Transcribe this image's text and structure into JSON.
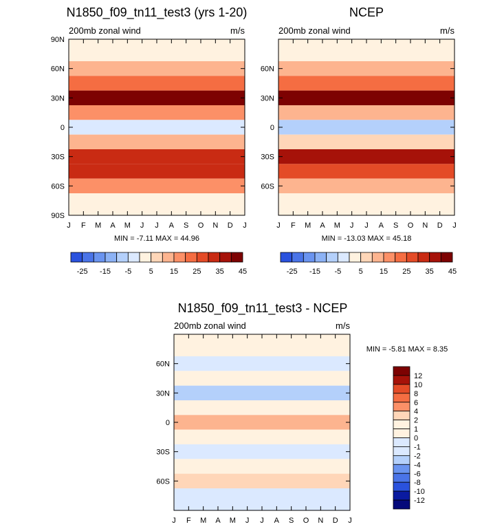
{
  "colors": {
    "warm": [
      "#fff2e0",
      "#ffd6b8",
      "#fdb48f",
      "#fc9067",
      "#f56d42",
      "#e44b27",
      "#c92b13",
      "#a61209",
      "#7d0202"
    ],
    "cool": [
      "#dbe9ff",
      "#b4d0fb",
      "#8cb2f5",
      "#6a94f0",
      "#4a74e8",
      "#2a52de",
      "#1230c8",
      "#0a1aa0",
      "#050a7a"
    ],
    "neutral": "#ffffff"
  },
  "chart_data": [
    {
      "type": "heatmap",
      "title": "N1850_f09_tn11_test3 (yrs 1-20)",
      "subtitle_left": "200mb zonal wind",
      "subtitle_right": "m/s",
      "x_ticks": [
        "J",
        "F",
        "M",
        "A",
        "M",
        "J",
        "J",
        "A",
        "S",
        "O",
        "N",
        "D",
        "J"
      ],
      "y_ticks": [
        "90N",
        "60N",
        "30N",
        "0",
        "30S",
        "60S",
        "90S"
      ],
      "ylim": [
        -90,
        90
      ],
      "stats": "MIN =  -7.11 MAX =  44.96",
      "colorbar_levels": [
        -30,
        -25,
        -20,
        -15,
        -10,
        -5,
        0,
        5,
        10,
        15,
        20,
        25,
        30,
        35,
        40,
        45
      ],
      "colorbar_labels": [
        "-25",
        "-15",
        "-5",
        "5",
        "15",
        "25",
        "35",
        "45"
      ],
      "contour_bands": [
        {
          "lat": 75,
          "value": 3
        },
        {
          "lat": 60,
          "value": 12
        },
        {
          "lat": 45,
          "value": 22
        },
        {
          "lat": 30,
          "value": 40
        },
        {
          "lat": 15,
          "value": 15
        },
        {
          "lat": 0,
          "value": -3
        },
        {
          "lat": -15,
          "value": 10
        },
        {
          "lat": -30,
          "value": 33
        },
        {
          "lat": -45,
          "value": 32
        },
        {
          "lat": -60,
          "value": 15
        },
        {
          "lat": -75,
          "value": 3
        }
      ]
    },
    {
      "type": "heatmap",
      "title": "NCEP",
      "subtitle_left": "200mb zonal wind",
      "subtitle_right": "m/s",
      "x_ticks": [
        "J",
        "F",
        "M",
        "A",
        "M",
        "J",
        "J",
        "A",
        "S",
        "O",
        "N",
        "D",
        "J"
      ],
      "y_ticks": [
        "60N",
        "30N",
        "0",
        "30S",
        "60S"
      ],
      "ylim": [
        -90,
        90
      ],
      "stats": "MIN = -13.03 MAX =  45.18",
      "colorbar_levels": [
        -30,
        -25,
        -20,
        -15,
        -10,
        -5,
        0,
        5,
        10,
        15,
        20,
        25,
        30,
        35,
        40,
        45
      ],
      "colorbar_labels": [
        "-25",
        "-15",
        "-5",
        "5",
        "15",
        "25",
        "35",
        "45"
      ],
      "contour_bands": [
        {
          "lat": 75,
          "value": 3
        },
        {
          "lat": 60,
          "value": 12
        },
        {
          "lat": 45,
          "value": 22
        },
        {
          "lat": 30,
          "value": 42
        },
        {
          "lat": 15,
          "value": 13
        },
        {
          "lat": 0,
          "value": -8
        },
        {
          "lat": -15,
          "value": 8
        },
        {
          "lat": -30,
          "value": 35
        },
        {
          "lat": -45,
          "value": 28
        },
        {
          "lat": -60,
          "value": 12
        },
        {
          "lat": -75,
          "value": 3
        }
      ]
    },
    {
      "type": "heatmap",
      "title": "N1850_f09_tn11_test3 - NCEP",
      "subtitle_left": "200mb zonal wind",
      "subtitle_right": "m/s",
      "x_ticks": [
        "J",
        "F",
        "M",
        "A",
        "M",
        "J",
        "J",
        "A",
        "S",
        "O",
        "N",
        "D",
        "J"
      ],
      "y_ticks": [
        "60N",
        "30N",
        "0",
        "30S",
        "60S"
      ],
      "ylim": [
        -90,
        90
      ],
      "stats": "MIN =  -5.81 MAX =   8.35",
      "colorbar_levels": [
        -14,
        -12,
        -10,
        -8,
        -6,
        -4,
        -2,
        -1,
        0,
        1,
        2,
        4,
        6,
        8,
        10,
        12,
        14
      ],
      "colorbar_labels": [
        "12",
        "10",
        "8",
        "6",
        "4",
        "2",
        "1",
        "0",
        "-1",
        "-2",
        "-4",
        "-6",
        "-8",
        "-10",
        "-12"
      ],
      "contour_bands": [
        {
          "lat": 75,
          "value": 0.5
        },
        {
          "lat": 60,
          "value": -1.5
        },
        {
          "lat": 45,
          "value": 1.5
        },
        {
          "lat": 30,
          "value": -2
        },
        {
          "lat": 15,
          "value": 1
        },
        {
          "lat": 0,
          "value": 4
        },
        {
          "lat": -15,
          "value": 1
        },
        {
          "lat": -30,
          "value": -1.5
        },
        {
          "lat": -45,
          "value": 1
        },
        {
          "lat": -60,
          "value": 2
        },
        {
          "lat": -75,
          "value": -1
        }
      ]
    }
  ]
}
